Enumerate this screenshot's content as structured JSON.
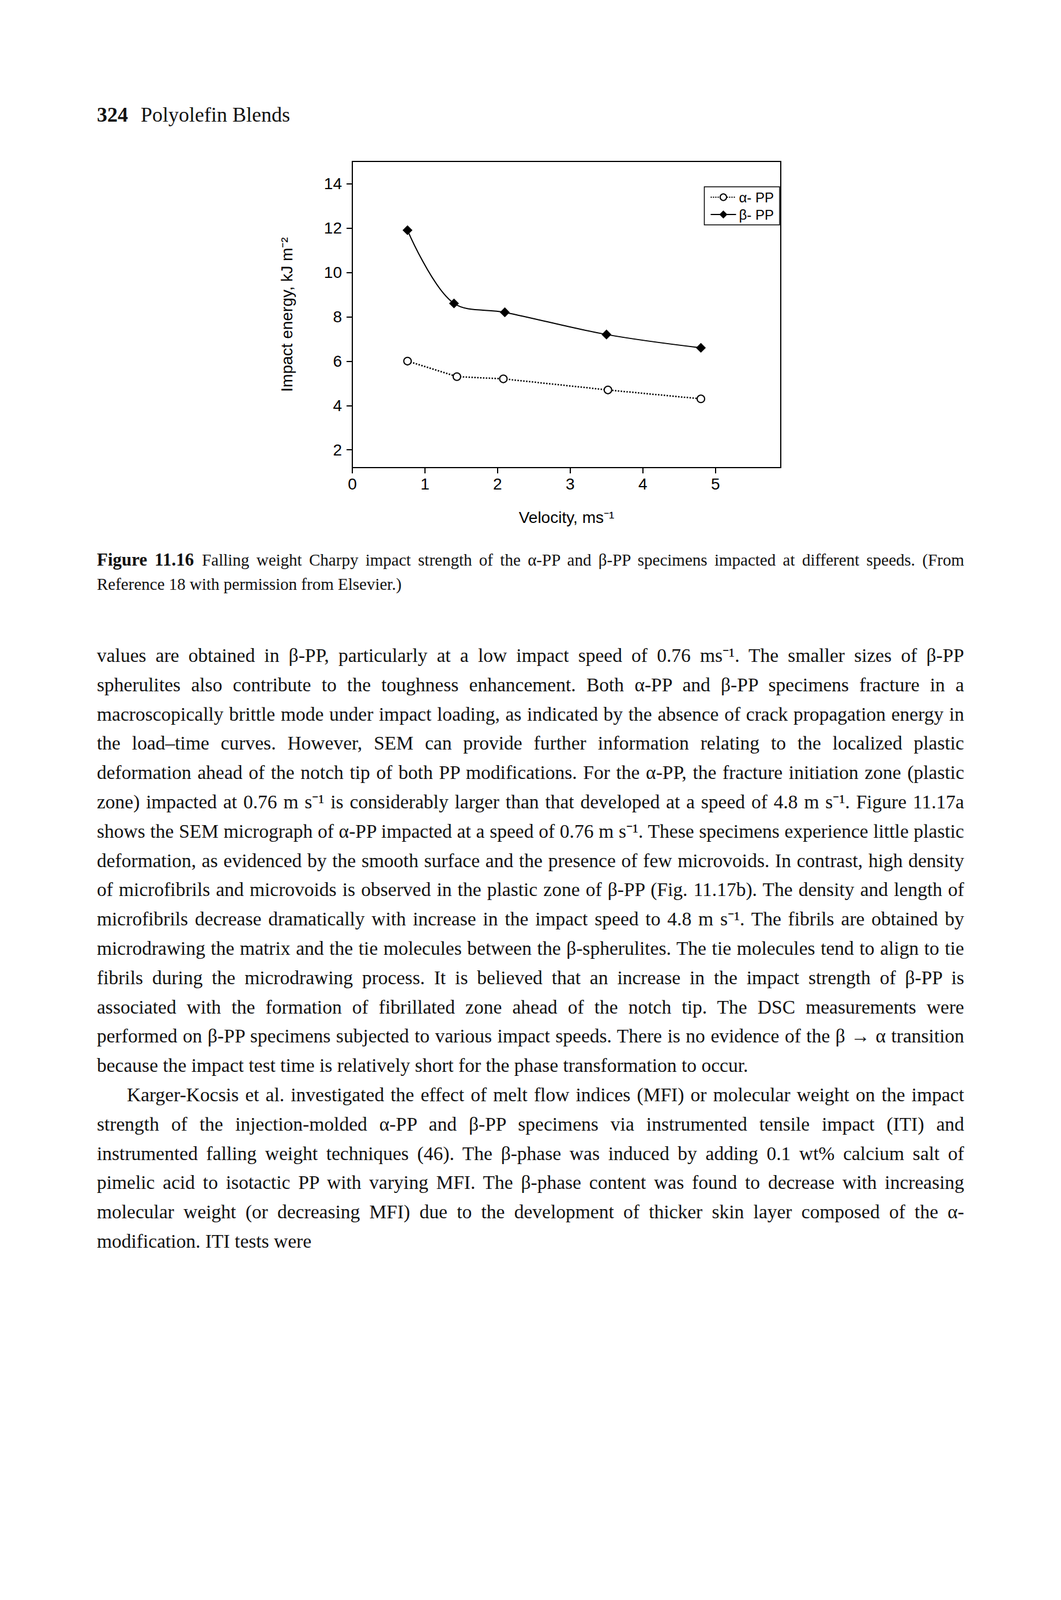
{
  "page": {
    "header": {
      "page_number": "324",
      "title": "Polyolefin Blends"
    },
    "caption": {
      "label": "Figure 11.16",
      "text": "Falling weight Charpy impact strength of the α-PP and β-PP specimens impacted at different speeds. (From Reference 18 with permission from Elsevier.)"
    },
    "paragraphs": [
      "values are obtained in β-PP, particularly at a low impact speed of 0.76 ms⁻¹. The smaller sizes of β-PP spherulites also contribute to the toughness enhancement. Both α-PP and β-PP specimens fracture in a macroscopically brittle mode under impact loading, as indicated by the absence of crack propagation energy in the load–time curves. However, SEM can provide further information relating to the localized plastic deformation ahead of the notch tip of both PP modifications. For the α-PP, the fracture initiation zone (plastic zone) impacted at 0.76 m s⁻¹ is considerably larger than that developed at a speed of 4.8 m s⁻¹. Figure 11.17a shows the SEM micrograph of α-PP impacted at a speed of 0.76 m s⁻¹. These specimens experience little plastic deformation, as evidenced by the smooth surface and the presence of few microvoids. In contrast, high density of microfibrils and microvoids is observed in the plastic zone of β-PP (Fig. 11.17b). The density and length of microfibrils decrease dramatically with increase in the impact speed to 4.8 m s⁻¹. The fibrils are obtained by microdrawing the matrix and the tie molecules between the β-spherulites. The tie molecules tend to align to tie fibrils during the microdrawing process. It is believed that an increase in the impact strength of β-PP is associated with the formation of fibrillated zone ahead of the notch tip. The DSC measurements were performed on β-PP specimens subjected to various impact speeds. There is no evidence of the β → α transition because the impact test time is relatively short for the phase transformation to occur.",
      "Karger-Kocsis et al. investigated the effect of melt flow indices (MFI) or molecular weight on the impact strength of the injection-molded α-PP and β-PP specimens via instrumented tensile impact (ITI) and instrumented falling weight techniques (46). The β-phase was induced by adding 0.1 wt% calcium salt of pimelic acid to isotactic PP with varying MFI. The β-phase content was found to decrease with increasing molecular weight (or decreasing MFI) due to the development of thicker skin layer composed of the α-modification. ITI tests were"
    ]
  },
  "chart_data": {
    "type": "line",
    "x_label": "Velocity, ms⁻¹",
    "y_label": "Impact energy, kJ m⁻²",
    "xlim": [
      0,
      5.9
    ],
    "xticks": [
      0,
      1,
      2,
      3,
      4,
      5
    ],
    "ylim": [
      1.2,
      15
    ],
    "yticks": [
      2,
      4,
      6,
      8,
      10,
      12,
      14
    ],
    "grid": false,
    "legend": "top-right",
    "series": [
      {
        "name": "α- PP",
        "color": "#000000",
        "marker": "circle-open",
        "line_style": "dotted",
        "x": [
          0.76,
          1.44,
          2.08,
          3.52,
          4.8
        ],
        "values": [
          6.0,
          5.3,
          5.2,
          4.7,
          4.3
        ]
      },
      {
        "name": "β- PP",
        "color": "#000000",
        "marker": "diamond",
        "line_style": "solid",
        "x": [
          0.76,
          1.4,
          2.1,
          3.5,
          4.8
        ],
        "values": [
          11.9,
          8.6,
          8.2,
          7.2,
          6.6
        ]
      }
    ]
  }
}
